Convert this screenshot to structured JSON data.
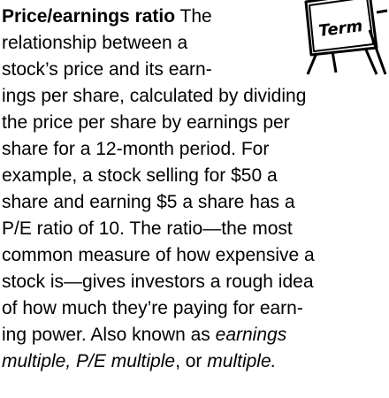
{
  "icon": {
    "label": "Term"
  },
  "lines": [
    [
      {
        "text": "Price/earnings ratio",
        "bold": true
      },
      {
        "text": " The"
      }
    ],
    [
      {
        "text": "relationship between a"
      }
    ],
    [
      {
        "text": "stock’s price and its earn-"
      }
    ],
    [
      {
        "text": "ings per share, calculated by dividing"
      }
    ],
    [
      {
        "text": "the price per share by earnings per"
      }
    ],
    [
      {
        "text": "share for a 12-month period. For"
      }
    ],
    [
      {
        "text": "example, a stock selling for $50 a"
      }
    ],
    [
      {
        "text": "share and earning $5 a share has a"
      }
    ],
    [
      {
        "text": "P/E ratio of 10. The ratio—the most"
      }
    ],
    [
      {
        "text": "common measure of how expensive a"
      }
    ],
    [
      {
        "text": "stock is—gives investors a rough idea"
      }
    ],
    [
      {
        "text": "of how much they’re paying for earn-"
      }
    ],
    [
      {
        "text": "ing power. Also known as "
      },
      {
        "text": "earnings",
        "italic": true
      }
    ],
    [
      {
        "text": "multiple, P/E multiple",
        "italic": true
      },
      {
        "text": ", or "
      },
      {
        "text": "multiple.",
        "italic": true
      }
    ]
  ]
}
